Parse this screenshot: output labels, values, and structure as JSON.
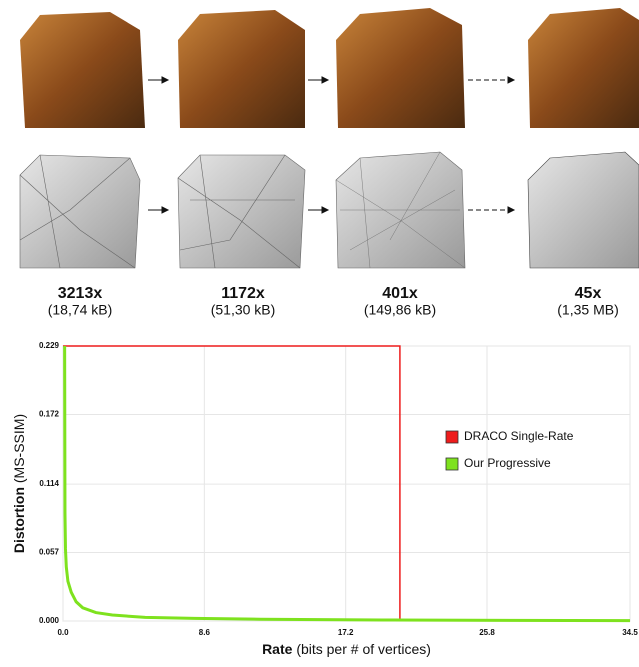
{
  "figure": {
    "stages": [
      {
        "ratio": "3213x",
        "size": "(18,74 kB)"
      },
      {
        "ratio": "1172x",
        "size": "(51,30 kB)"
      },
      {
        "ratio": "401x",
        "size": "(149,86 kB)"
      },
      {
        "ratio": "45x",
        "size": "(1,35 MB)"
      }
    ]
  },
  "chart_data": {
    "type": "line",
    "x_label_bold": "Rate",
    "x_label_rest": "(bits per # of vertices)",
    "y_label_bold": "Distortion",
    "y_label_rest": "(MS-SSIM)",
    "xlim": [
      0,
      34.5
    ],
    "xticks": [
      {
        "value": 0,
        "label": "0.0"
      },
      8.6,
      17.2,
      25.8,
      34.5
    ],
    "ylim": [
      0,
      0.229
    ],
    "yticks": [
      {
        "value": 0,
        "label": "0.000"
      },
      0.057,
      0.114,
      0.172,
      0.229
    ],
    "grid": true,
    "legend": "right",
    "series": [
      {
        "name": "DRACO Single-Rate",
        "color": "#ee1c1c",
        "x": [
          0,
          20.5,
          20.5
        ],
        "values": [
          0.229,
          0.229,
          0
        ]
      },
      {
        "name": "Our Progressive",
        "color": "#7ee21e",
        "x": [
          0.1,
          0.12,
          0.15,
          0.2,
          0.3,
          0.5,
          0.8,
          1.2,
          2,
          3,
          5,
          8,
          12,
          20,
          34.5
        ],
        "values": [
          0.229,
          0.09,
          0.06,
          0.045,
          0.033,
          0.024,
          0.016,
          0.011,
          0.007,
          0.005,
          0.003,
          0.0022,
          0.0015,
          0.0008,
          0.0003
        ]
      }
    ]
  }
}
